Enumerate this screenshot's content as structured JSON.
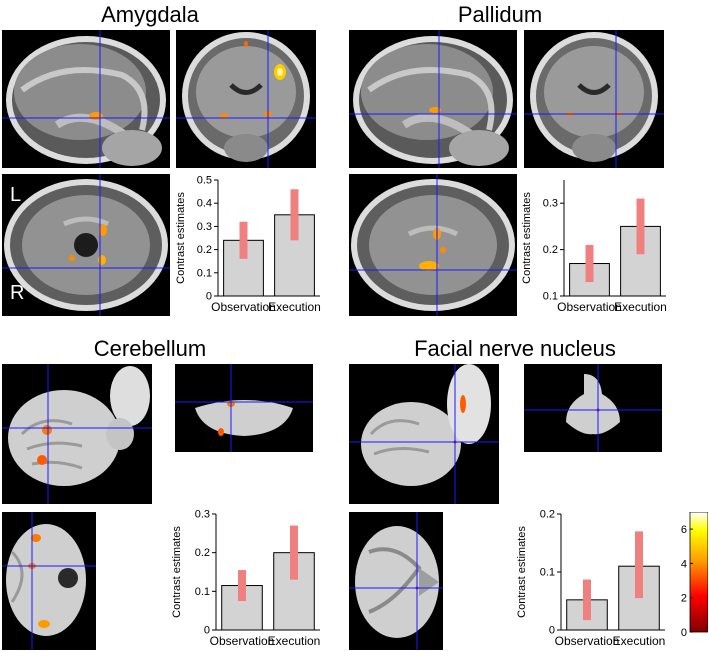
{
  "titles": {
    "amygdala": "Amygdala",
    "pallidum": "Pallidum",
    "cerebellum": "Cerebellum",
    "facial": "Facial nerve nucleus"
  },
  "orientation": {
    "left": "L",
    "right": "R"
  },
  "colorbar": {
    "ticks": [
      0,
      2,
      4,
      6
    ],
    "min": 0,
    "max": 7,
    "colormap": "hot"
  },
  "chart_data": [
    {
      "id": "amygdala",
      "type": "bar",
      "categories": [
        "Observation",
        "Execution"
      ],
      "values": [
        0.24,
        0.35
      ],
      "ci": [
        [
          0.16,
          0.32
        ],
        [
          0.24,
          0.46
        ]
      ],
      "ylabel": "Contrast estimates",
      "ylim": [
        0,
        0.5
      ],
      "yticks": [
        0,
        0.1,
        0.2,
        0.3,
        0.4,
        0.5
      ],
      "bar_color": "#d3d3d3",
      "ci_color": "#f08080"
    },
    {
      "id": "pallidum",
      "type": "bar",
      "categories": [
        "Observation",
        "Execution"
      ],
      "values": [
        0.17,
        0.25
      ],
      "ci": [
        [
          0.13,
          0.21
        ],
        [
          0.19,
          0.31
        ]
      ],
      "ylabel": "Contrast estimates",
      "ylim": [
        0.1,
        0.35
      ],
      "yticks": [
        0.1,
        0.2,
        0.3
      ],
      "bar_color": "#d3d3d3",
      "ci_color": "#f08080"
    },
    {
      "id": "cerebellum",
      "type": "bar",
      "categories": [
        "Observation",
        "Execution"
      ],
      "values": [
        0.115,
        0.2
      ],
      "ci": [
        [
          0.075,
          0.155
        ],
        [
          0.13,
          0.27
        ]
      ],
      "ylabel": "Contrast estimates",
      "ylim": [
        0,
        0.3
      ],
      "yticks": [
        0,
        0.1,
        0.2,
        0.3
      ],
      "bar_color": "#d3d3d3",
      "ci_color": "#f08080"
    },
    {
      "id": "facial",
      "type": "bar",
      "categories": [
        "Observation",
        "Execution"
      ],
      "values": [
        0.052,
        0.11
      ],
      "ci": [
        [
          0.017,
          0.087
        ],
        [
          0.055,
          0.17
        ]
      ],
      "ylabel": "Contrast estimates",
      "ylim": [
        0,
        0.2
      ],
      "yticks": [
        0,
        0.1,
        0.2
      ],
      "bar_color": "#d3d3d3",
      "ci_color": "#f08080"
    }
  ]
}
